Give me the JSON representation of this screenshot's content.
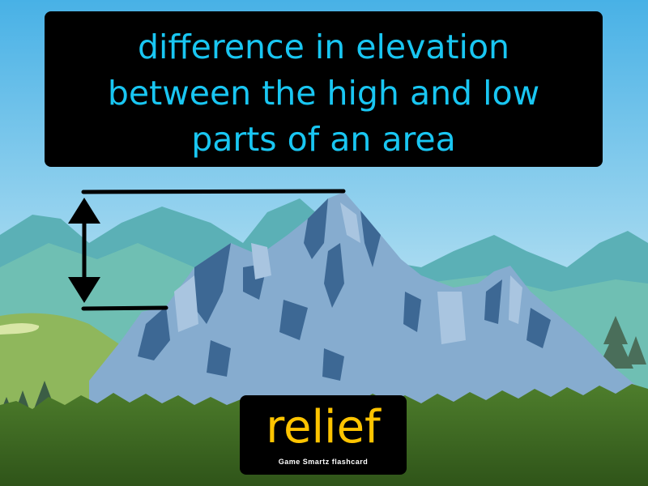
{
  "definition": {
    "lines": [
      "difference in elevation",
      "between the high and low",
      "parts of an area"
    ]
  },
  "term": {
    "word": "relief",
    "brand": "Game Smartz flashcard"
  },
  "colors": {
    "definition_text": "#19c6f2",
    "term_text": "#ffc400",
    "panel_bg": "#000000",
    "sky_top": "#4fb3e6",
    "sky_bottom": "#d9eef2",
    "mountain_main": "#7fa6cc",
    "mountain_shadow": "#3e6a96",
    "grass": "#3f6b25"
  }
}
